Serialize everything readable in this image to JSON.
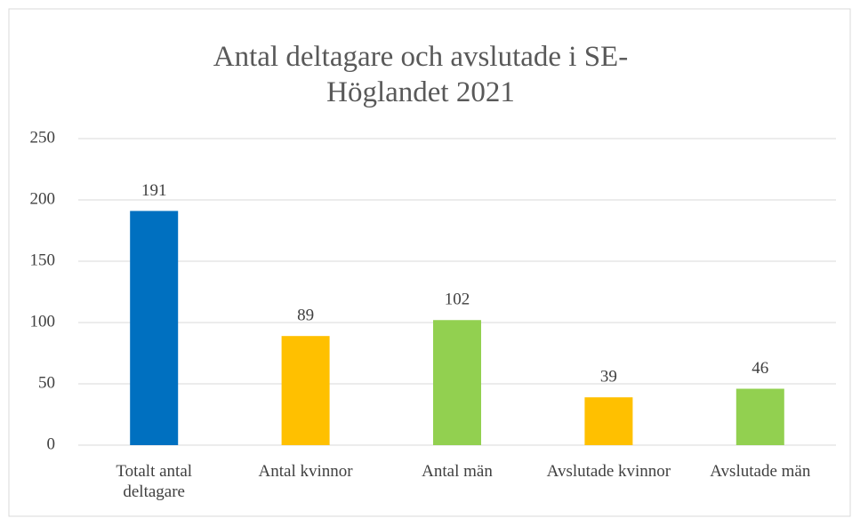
{
  "chart_data": {
    "type": "bar",
    "title": "Antal deltagare och avslutade i SE-Höglandet 2021",
    "categories": [
      "Totalt antal deltagare",
      "Antal kvinnor",
      "Antal män",
      "Avslutade kvinnor",
      "Avslutade män"
    ],
    "values": [
      191,
      89,
      102,
      39,
      46
    ],
    "colors": [
      "#0070c0",
      "#ffc000",
      "#92d050",
      "#ffc000",
      "#92d050"
    ],
    "ylim": [
      0,
      250
    ],
    "yticks": [
      0,
      50,
      100,
      150,
      200,
      250
    ],
    "grid": true
  }
}
